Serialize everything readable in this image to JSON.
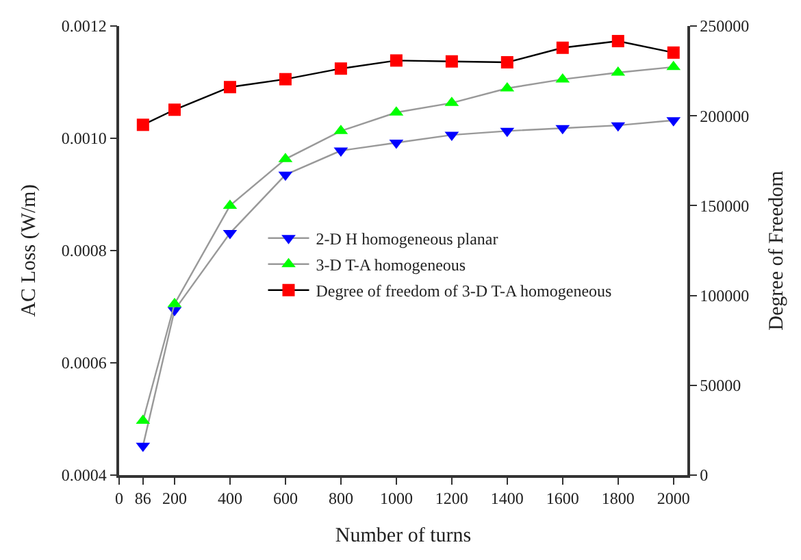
{
  "chart_data": {
    "type": "line",
    "xlabel": "Number of turns",
    "ylabel": "AC Loss (W/m)",
    "y2label": "Degree of Freedom",
    "x": [
      86,
      200,
      400,
      600,
      800,
      1000,
      1200,
      1400,
      1600,
      1800,
      2000
    ],
    "xlim": [
      0,
      2050
    ],
    "xticks": [
      0,
      86,
      200,
      400,
      600,
      800,
      1000,
      1200,
      1400,
      1600,
      1800,
      2000
    ],
    "ylim": [
      0.0004,
      0.0012
    ],
    "yticks": [
      {
        "value": 0.0004,
        "label": "0.0004"
      },
      {
        "value": 0.0006,
        "label": "0.0006"
      },
      {
        "value": 0.0008,
        "label": "0.0008"
      },
      {
        "value": 0.001,
        "label": "0.0010"
      },
      {
        "value": 0.0012,
        "label": "0.0012"
      }
    ],
    "y2lim": [
      0,
      250000
    ],
    "y2ticks": [
      0,
      50000,
      100000,
      150000,
      200000,
      250000
    ],
    "legend": "right",
    "line_style": "solid",
    "series": [
      {
        "name": "2-D H homogeneous planar",
        "color": "#0000ff",
        "marker": "triangle-down",
        "values": [
          0.000452,
          0.000694,
          0.000831,
          0.000935,
          0.000978,
          0.000992,
          0.001006,
          0.001013,
          0.001018,
          0.001023,
          0.001032
        ]
      },
      {
        "name": "3-D T-A homogeneous",
        "color": "#00ff00",
        "marker": "triangle",
        "values": [
          0.000497,
          0.000705,
          0.00088,
          0.000963,
          0.001013,
          0.001046,
          0.001063,
          0.001089,
          0.001105,
          0.001117,
          0.001127
        ]
      },
      {
        "name": "Degree of freedom of 3-D T-A homogeneous",
        "color": "#ff0000",
        "marker": "square",
        "axis": "y2",
        "values": [
          195000,
          203400,
          216000,
          220400,
          226300,
          230800,
          230300,
          229800,
          237900,
          241600,
          235200
        ]
      }
    ]
  }
}
